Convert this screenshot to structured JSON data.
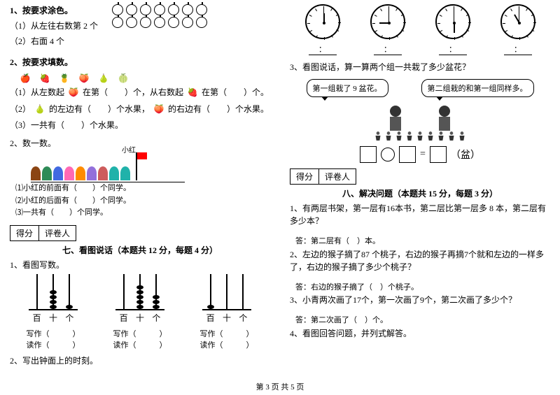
{
  "left": {
    "q1": {
      "title": "1、按要求涂色。",
      "sub1": "（1）从左往右数第 2 个",
      "sub2": "（2）右面 4 个",
      "apple_count_per_row": 7,
      "apple_rows": 2
    },
    "q2": {
      "title": "2、按要求填数。",
      "sub1": "（1）从左数起",
      "sub1_mid": "在第（　　）个，从右数起",
      "sub1_end": "在第（　　）个。",
      "sub2": "（2）",
      "sub2_mid": "的左边有（　　）个水果，",
      "sub2_end": "的右边有（　　）个水果。",
      "sub3": "（3）一共有（　　）个水果。"
    },
    "count": {
      "title": "2、数一数。",
      "label_xh": "小红",
      "s1": "⑴小红的前面有（　　）个同学。",
      "s2": "⑵小红的后面有（　　）个同学。",
      "s3": "⑶一共有（　　）个同学。"
    },
    "score": {
      "l1": "得分",
      "l2": "评卷人"
    },
    "section7": "七、看图说话（本题共 12 分，每题 4 分）",
    "abacus": {
      "title": "1、看图写数。",
      "places": [
        "百",
        "十",
        "个"
      ],
      "write": "写作（　　　）",
      "read": "读作（　　　）",
      "groups": [
        {
          "beads": [
            0,
            4,
            1
          ]
        },
        {
          "beads": [
            0,
            5,
            3
          ]
        },
        {
          "beads": [
            1,
            0,
            0
          ]
        }
      ]
    },
    "clock_q": "2、写出钟面上的时刻。"
  },
  "right": {
    "clocks": [
      {
        "hour_deg": 0,
        "min_deg": 0
      },
      {
        "hour_deg": 270,
        "min_deg": 0
      },
      {
        "hour_deg": 180,
        "min_deg": 0
      },
      {
        "hour_deg": 330,
        "min_deg": 0
      }
    ],
    "time_sep": "：",
    "q3": "3、看图说话，算一算两个组一共栽了多少盆花？",
    "speech1": "第一组栽了 9 盆花。",
    "speech2": "第二组栽的和第一组同样多。",
    "unit": "（盆）",
    "score": {
      "l1": "得分",
      "l2": "评卷人"
    },
    "section8": "八、解决问题（本题共 15 分，每题 3 分）",
    "p1": "1、有两层书架，第一层有16本书，第二层比第一层多 8 本，第二层有多少本？",
    "a1": "答：第二层有（　）本。",
    "p2": "2、左边的猴子摘了87 个桃子，右边的猴子再摘7个就和左边的一样多了，右边的猴子摘了多少个桃子？",
    "a2": "答：右边的猴子摘了（　）个桃子。",
    "p3": "3、小青两次画了17个，第一次画了9个，第二次画了多少个？",
    "a3": "答：第二次画了（　）个。",
    "p4": "4、看图回答问题，并列式解答。"
  },
  "footer": "第 3 页 共 5 页"
}
